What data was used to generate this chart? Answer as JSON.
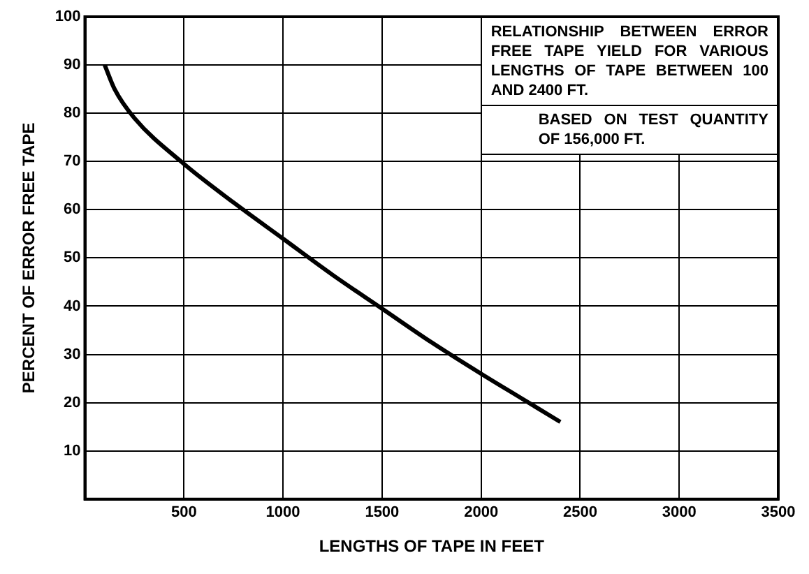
{
  "chart_data": {
    "type": "line",
    "xlabel": "LENGTHS OF TAPE IN FEET",
    "ylabel": "PERCENT OF ERROR FREE TAPE",
    "annotations": [
      "RELATIONSHIP BETWEEN ERROR FREE TAPE YIELD FOR VARIOUS LENGTHS OF TAPE BETWEEN 100 AND 2400 FT.",
      "BASED ON TEST QUANTITY OF 156,000 FT."
    ],
    "x": [
      100,
      150,
      250,
      500,
      750,
      1000,
      1250,
      1500,
      1750,
      2000,
      2200,
      2400
    ],
    "series": [
      {
        "color": "#000000",
        "values": [
          90,
          85,
          79,
          69.5,
          61.5,
          54,
          46.5,
          39.5,
          32.5,
          26,
          21,
          16
        ]
      }
    ],
    "xlim": [
      0,
      3500
    ],
    "xticks": [
      500,
      1000,
      1500,
      2000,
      2500,
      3000,
      3500
    ],
    "ylim": [
      0,
      100
    ],
    "yticks": [
      10,
      20,
      30,
      40,
      50,
      60,
      70,
      80,
      90,
      100
    ],
    "grid": true,
    "marker": "none",
    "line_style": "solid"
  }
}
